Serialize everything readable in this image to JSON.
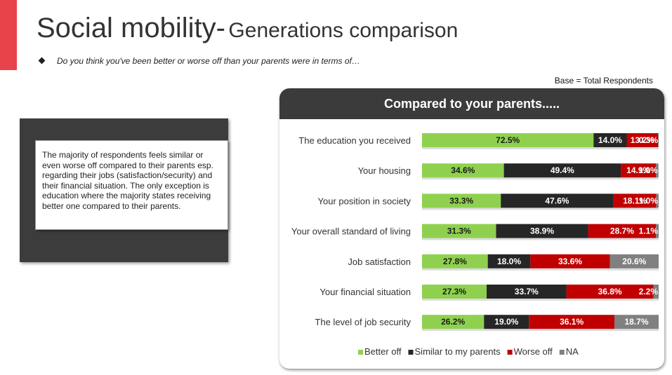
{
  "header": {
    "title_main": "Social mobility-",
    "title_sub": "Generations comparison",
    "question": "Do you think you've been better or worse off than your parents were in terms of…",
    "base_note": "Base = Total Respondents"
  },
  "note": {
    "text": "The majority of respondents feels similar or even worse off compared to their parents esp. regarding their jobs (satisfaction/security) and their financial situation. The only exception is education where the majority states receiving better one compared to their parents."
  },
  "chart_data": {
    "type": "bar",
    "orientation": "horizontal",
    "stacked": true,
    "title": "Compared to your parents.....",
    "categories": [
      "The education you received",
      "Your housing",
      "Your position in society",
      "Your overall standard of living",
      "Job satisfaction",
      "Your financial situation",
      "The level of job security"
    ],
    "series": [
      {
        "name": "Better off",
        "color": "#8fd14f",
        "values": [
          72.5,
          34.6,
          33.3,
          31.3,
          27.8,
          27.3,
          26.2
        ]
      },
      {
        "name": "Similar to my parents",
        "color": "#262626",
        "values": [
          14.0,
          49.4,
          47.6,
          38.9,
          18.0,
          33.7,
          19.0
        ]
      },
      {
        "name": "Worse off",
        "color": "#c00000",
        "values": [
          13.2,
          14.9,
          18.1,
          28.7,
          33.6,
          36.8,
          36.1
        ]
      },
      {
        "name": "NA",
        "color": "#808080",
        "values": [
          0.3,
          1.0,
          1.0,
          1.1,
          20.6,
          2.2,
          18.7
        ]
      }
    ],
    "value_labels": [
      [
        "72.5%",
        "14.0%",
        "13.2%",
        "0.3%"
      ],
      [
        "34.6%",
        "49.4%",
        "14.9%",
        "1.0%"
      ],
      [
        "33.3%",
        "47.6%",
        "18.1%",
        "1.0%"
      ],
      [
        "31.3%",
        "38.9%",
        "28.7%",
        "1.1%"
      ],
      [
        "27.8%",
        "18.0%",
        "33.6%",
        "20.6%"
      ],
      [
        "27.3%",
        "33.7%",
        "36.8%",
        "2.2%"
      ],
      [
        "26.2%",
        "19.0%",
        "36.1%",
        "18.7%"
      ]
    ],
    "xlim": [
      0,
      100
    ],
    "grid": false,
    "legend_position": "bottom"
  }
}
